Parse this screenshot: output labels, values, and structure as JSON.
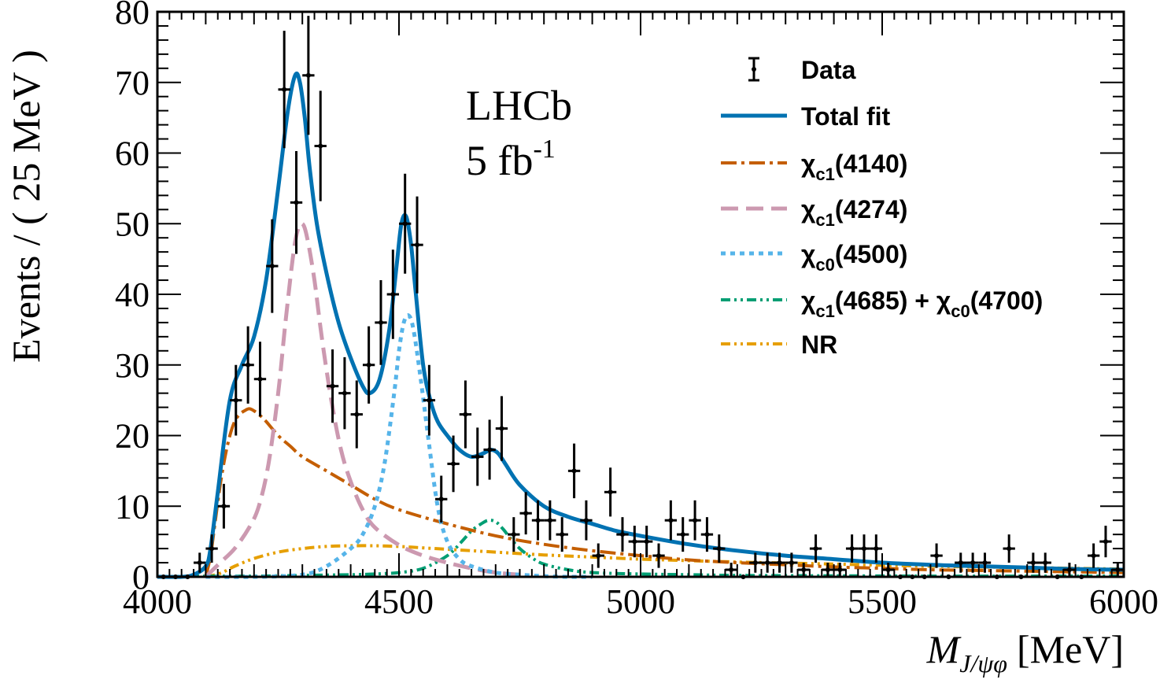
{
  "chart_data": {
    "type": "line",
    "experiment_label": "LHCb",
    "luminosity": "5 fb",
    "luminosity_sup": "-1",
    "xlabel": "M",
    "xlabel_sub": "J/ψφ",
    "xlabel_unit": "[MeV]",
    "ylabel": "Events / ( 25 MeV )",
    "xlim": [
      4000,
      6000
    ],
    "ylim": [
      0,
      80
    ],
    "xticks": [
      4000,
      4500,
      5000,
      5500,
      6000
    ],
    "yticks": [
      0,
      10,
      20,
      30,
      40,
      50,
      60,
      70,
      80
    ],
    "legend_position": "top-right",
    "legend": {
      "data": "Data",
      "total": "Total fit",
      "chi4140": {
        "prefix": "χ",
        "sub": "c1",
        "suffix": "(4140)"
      },
      "chi4274": {
        "prefix": "χ",
        "sub": "c1",
        "suffix": "(4274)"
      },
      "chi4500": {
        "prefix": "χ",
        "sub": "c0",
        "suffix": "(4500)"
      },
      "chi4685": {
        "prefix": "χ",
        "sub": "c1",
        "mid": "(4685) + χ",
        "sub2": "c0",
        "suffix": "(4700)"
      },
      "nr": "NR"
    },
    "data_points": {
      "x": [
        4012.5,
        4037.5,
        4062.5,
        4087.5,
        4112.5,
        4137.5,
        4162.5,
        4187.5,
        4212.5,
        4237.5,
        4262.5,
        4287.5,
        4312.5,
        4337.5,
        4362.5,
        4387.5,
        4412.5,
        4437.5,
        4462.5,
        4487.5,
        4512.5,
        4537.5,
        4562.5,
        4587.5,
        4612.5,
        4637.5,
        4662.5,
        4687.5,
        4712.5,
        4737.5,
        4762.5,
        4787.5,
        4812.5,
        4837.5,
        4862.5,
        4887.5,
        4912.5,
        4937.5,
        4962.5,
        4987.5,
        5012.5,
        5037.5,
        5062.5,
        5087.5,
        5112.5,
        5137.5,
        5162.5,
        5187.5,
        5212.5,
        5237.5,
        5262.5,
        5287.5,
        5312.5,
        5337.5,
        5362.5,
        5387.5,
        5412.5,
        5437.5,
        5462.5,
        5487.5,
        5512.5,
        5537.5,
        5562.5,
        5587.5,
        5612.5,
        5637.5,
        5662.5,
        5687.5,
        5712.5,
        5737.5,
        5762.5,
        5787.5,
        5812.5,
        5837.5,
        5862.5,
        5887.5,
        5912.5,
        5937.5,
        5962.5,
        5987.5
      ],
      "y": [
        0,
        0,
        0,
        2,
        4,
        10,
        25,
        30,
        28,
        44,
        69,
        53,
        71,
        61,
        27,
        26,
        23,
        30,
        36,
        40,
        50,
        47,
        25,
        11,
        16,
        23,
        17,
        18,
        21,
        6,
        9,
        8,
        8,
        6,
        15,
        8,
        3,
        12,
        6,
        5,
        5,
        3,
        8,
        6,
        8,
        6,
        4,
        1,
        0,
        2,
        2,
        2,
        2,
        1,
        4,
        1,
        1,
        4,
        4,
        4,
        1,
        0,
        0,
        0,
        3,
        0,
        2,
        2,
        2,
        0,
        4,
        0,
        2,
        2,
        0,
        1,
        0,
        3,
        5,
        1
      ]
    },
    "series": [
      {
        "key": "total",
        "color": "#0072b2",
        "dash": "none",
        "width": 5,
        "x": [
          4000,
          4050,
          4075,
          4100,
          4110,
          4125,
          4150,
          4175,
          4200,
          4225,
          4250,
          4270,
          4285,
          4295,
          4305,
          4315,
          4330,
          4350,
          4375,
          4400,
          4425,
          4440,
          4460,
          4480,
          4495,
          4505,
          4515,
          4525,
          4535,
          4550,
          4565,
          4580,
          4600,
          4625,
          4650,
          4675,
          4690,
          4705,
          4720,
          4750,
          4800,
          4850,
          4900,
          4950,
          5000,
          5100,
          5200,
          5300,
          5400,
          5500,
          5600,
          5700,
          5800,
          5900,
          6000
        ],
        "y": [
          0,
          0,
          0.3,
          1.5,
          4,
          12,
          25,
          30,
          34,
          42,
          55,
          66,
          71,
          70,
          65,
          58,
          50,
          43,
          36,
          31,
          27,
          26,
          28,
          35,
          44,
          50,
          51,
          47,
          40,
          30,
          25,
          22,
          20,
          18,
          17,
          17.5,
          18,
          17.5,
          16,
          13,
          10,
          8.5,
          7.5,
          6.5,
          5.8,
          4.6,
          3.7,
          3,
          2.5,
          2,
          1.7,
          1.5,
          1.3,
          1.1,
          1
        ]
      },
      {
        "key": "chi4140",
        "color": "#c45e00",
        "dash": "20 6 4 6",
        "width": 4,
        "x": [
          4100,
          4110,
          4120,
          4130,
          4140,
          4150,
          4160,
          4170,
          4180,
          4190,
          4200,
          4210,
          4225,
          4250,
          4275,
          4300,
          4350,
          4400,
          4450,
          4500,
          4600,
          4700,
          4800,
          4900,
          5000,
          5100,
          5200,
          5300,
          5400,
          5500,
          5600,
          5700,
          5800,
          5900,
          6000
        ],
        "y": [
          0,
          3,
          8,
          13,
          17,
          20,
          22,
          23,
          23.5,
          23.8,
          23.5,
          23,
          22,
          20,
          18.5,
          17,
          15,
          13,
          11,
          9.5,
          7.5,
          5.8,
          4.6,
          3.7,
          3,
          2.4,
          2,
          1.7,
          1.4,
          1.2,
          1,
          0.9,
          0.8,
          0.7,
          0.6
        ]
      },
      {
        "key": "chi4274",
        "color": "#cc99b0",
        "dash": "22 10",
        "width": 5,
        "x": [
          4100,
          4130,
          4160,
          4190,
          4210,
          4230,
          4250,
          4265,
          4280,
          4290,
          4300,
          4310,
          4325,
          4340,
          4360,
          4380,
          4400,
          4425,
          4450,
          4500,
          4550,
          4600,
          4650,
          4700,
          4750
        ],
        "y": [
          0,
          2,
          4,
          7,
          10,
          16,
          26,
          36,
          45,
          49,
          50,
          48,
          42,
          34,
          25,
          18,
          13.5,
          9.5,
          7,
          4.5,
          3,
          2,
          1.2,
          0.6,
          0.3
        ]
      },
      {
        "key": "chi4500",
        "color": "#56b4e9",
        "dash": "6 6",
        "width": 5,
        "x": [
          4100,
          4200,
          4300,
          4350,
          4400,
          4425,
          4450,
          4470,
          4490,
          4500,
          4510,
          4520,
          4530,
          4545,
          4560,
          4580,
          4600,
          4625,
          4650,
          4700,
          4750,
          4800,
          4850,
          4900
        ],
        "y": [
          0,
          0,
          0.3,
          1.5,
          4,
          6,
          10,
          16,
          26,
          32,
          36,
          37,
          35,
          28,
          20,
          10,
          5,
          2.5,
          1.5,
          0.6,
          0.3,
          0.1,
          0,
          0
        ]
      },
      {
        "key": "chi4685",
        "color": "#009e73",
        "dash": "12 5 3 5 3 5",
        "width": 4,
        "x": [
          4000,
          4100,
          4200,
          4300,
          4400,
          4450,
          4500,
          4550,
          4600,
          4630,
          4650,
          4670,
          4685,
          4700,
          4715,
          4730,
          4750,
          4775,
          4800,
          4850,
          4900,
          5000,
          5100,
          5200,
          5400,
          5600,
          5800,
          6000
        ],
        "y": [
          0,
          0.1,
          0.1,
          0.2,
          0.3,
          0.4,
          0.6,
          1.2,
          3,
          5,
          6.5,
          7.5,
          8,
          7.8,
          6.8,
          5.5,
          4,
          2.7,
          1.8,
          1,
          0.6,
          0.4,
          0.3,
          0.2,
          0.15,
          0.1,
          0.1,
          0.1
        ]
      },
      {
        "key": "nr",
        "color": "#e69f00",
        "dash": "12 5 3 5 3 5",
        "width": 4,
        "x": [
          4100,
          4130,
          4160,
          4200,
          4250,
          4300,
          4350,
          4400,
          4450,
          4500,
          4550,
          4600,
          4700,
          4800,
          4900,
          5000,
          5100,
          5200,
          5400,
          5600,
          5800,
          6000
        ],
        "y": [
          0,
          0.5,
          1.5,
          2.6,
          3.5,
          4,
          4.3,
          4.4,
          4.4,
          4.3,
          4.1,
          3.9,
          3.5,
          3.1,
          2.8,
          2.5,
          2.3,
          2.1,
          1.8,
          1.5,
          1.3,
          1.1
        ]
      }
    ]
  }
}
